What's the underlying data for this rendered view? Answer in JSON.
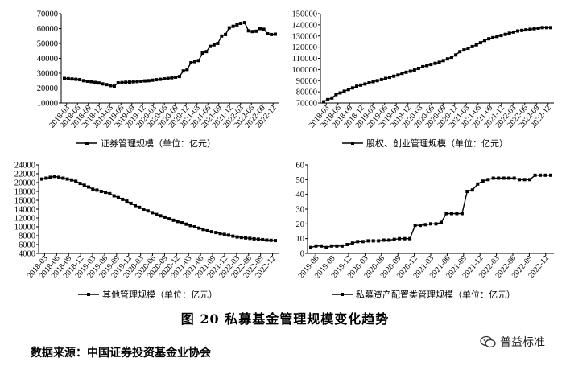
{
  "caption": "图 20    私募基金管理规模变化趋势",
  "source": "数据来源：中国证券投资基金业协会",
  "watermark": {
    "text": "普益标准",
    "icon": "wechat-icon"
  },
  "chart_data": [
    {
      "type": "line",
      "legend": "证券管理规模（单位：亿元）",
      "ylim": [
        10000,
        70000
      ],
      "yticks": [
        10000,
        20000,
        30000,
        40000,
        50000,
        60000,
        70000
      ],
      "xticks": [
        "2018-03",
        "2018-06",
        "2018-09",
        "2018-12",
        "2019-03",
        "2019-06",
        "2019-09",
        "2019-12",
        "2020-03",
        "2020-06",
        "2020-09",
        "2020-12",
        "2021-03",
        "2021-06",
        "2021-09",
        "2021-12",
        "2022-03",
        "2022-06",
        "2022-09",
        "2022-12"
      ],
      "values": [
        26500,
        26300,
        26100,
        25900,
        25700,
        25000,
        24600,
        24300,
        23800,
        23400,
        22800,
        22300,
        21600,
        21300,
        23500,
        23700,
        23900,
        24000,
        24200,
        24400,
        24600,
        24800,
        25000,
        25300,
        25600,
        25900,
        26200,
        26500,
        26900,
        27300,
        27800,
        31500,
        32500,
        37000,
        37800,
        38500,
        43500,
        44500,
        48000,
        49000,
        50000,
        55000,
        56000,
        60500,
        61500,
        62500,
        63500,
        64000,
        58500,
        58000,
        58200,
        60000,
        59500,
        56500,
        56000,
        56200
      ],
      "color": "#000000"
    },
    {
      "type": "line",
      "legend": "股权、创业管理规模（单位：亿元）",
      "ylim": [
        70000,
        150000
      ],
      "yticks": [
        70000,
        80000,
        90000,
        100000,
        110000,
        120000,
        130000,
        140000,
        150000
      ],
      "xticks": [
        "2018-03",
        "2018-06",
        "2018-09",
        "2018-12",
        "2019-03",
        "2019-06",
        "2019-09",
        "2019-12",
        "2020-03",
        "2020-06",
        "2020-09",
        "2020-12",
        "2021-03",
        "2021-06",
        "2021-09",
        "2021-12",
        "2022-03",
        "2022-06",
        "2022-09",
        "2022-12"
      ],
      "values": [
        71000,
        73000,
        74500,
        77500,
        79000,
        80500,
        82000,
        83500,
        85000,
        86000,
        87000,
        88000,
        89000,
        90000,
        91000,
        92000,
        93000,
        94000,
        95000,
        96500,
        97500,
        98500,
        99500,
        101000,
        102500,
        103500,
        104500,
        105500,
        106500,
        108000,
        109500,
        111000,
        113000,
        116000,
        117500,
        119000,
        120500,
        122000,
        124000,
        126000,
        127500,
        128500,
        129500,
        130500,
        131500,
        132500,
        133500,
        134500,
        135000,
        135500,
        136000,
        136500,
        137000,
        137500,
        137500,
        137500
      ],
      "color": "#000000"
    },
    {
      "type": "line",
      "legend": "其他管理规模（单位：亿元）",
      "ylim": [
        4000,
        24000
      ],
      "yticks": [
        4000,
        6000,
        8000,
        10000,
        12000,
        14000,
        16000,
        18000,
        20000,
        22000,
        24000
      ],
      "xticks": [
        "2018-03",
        "2018-06",
        "2018-09",
        "2018-12",
        "2019-03",
        "2019-06",
        "2019-09",
        "2019-12",
        "2020-03",
        "2020-06",
        "2020-09",
        "2020-12",
        "2021-03",
        "2021-06",
        "2021-09",
        "2021-12",
        "2022-03",
        "2022-06",
        "2022-09",
        "2022-12"
      ],
      "values": [
        20800,
        21000,
        21200,
        21400,
        21200,
        21000,
        20800,
        20600,
        20300,
        19800,
        19400,
        19000,
        18500,
        18300,
        18000,
        17800,
        17500,
        17000,
        16600,
        16200,
        15800,
        15300,
        14800,
        14400,
        14000,
        13600,
        13200,
        12800,
        12500,
        12200,
        11800,
        11500,
        11200,
        10900,
        10600,
        10300,
        10000,
        9700,
        9400,
        9100,
        8900,
        8700,
        8500,
        8300,
        8100,
        7900,
        7700,
        7600,
        7500,
        7400,
        7300,
        7200,
        7100,
        7000,
        6950,
        6900
      ],
      "color": "#000000"
    },
    {
      "type": "line",
      "legend": "私募资产配置类管理规模（单位：亿元）",
      "ylim": [
        0,
        60
      ],
      "yticks": [
        0,
        10,
        20,
        30,
        40,
        50,
        60
      ],
      "xticks": [
        "2019-06",
        "2019-09",
        "2019-12",
        "2020-03",
        "2020-06",
        "2020-09",
        "2020-12",
        "2021-03",
        "2021-06",
        "2021-09",
        "2021-12",
        "2022-03",
        "2022-06",
        "2022-09",
        "2022-12"
      ],
      "values": [
        4,
        5,
        5,
        4,
        5,
        5,
        5,
        6,
        7,
        8,
        8,
        8.5,
        8.5,
        8.5,
        9,
        9,
        9.5,
        10,
        10,
        10,
        19,
        19,
        19.5,
        20,
        20,
        21,
        27,
        27,
        27,
        27,
        42,
        43,
        47,
        49,
        50,
        51,
        51,
        51,
        51,
        51,
        50,
        50,
        50,
        53,
        53,
        53,
        53
      ],
      "color": "#000000"
    }
  ]
}
